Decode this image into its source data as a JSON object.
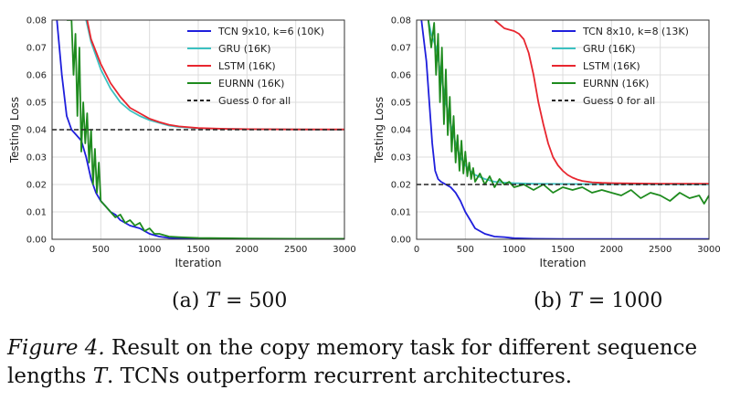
{
  "chart_data": [
    {
      "type": "line",
      "subcaption": {
        "prefix": "(a) ",
        "var": "T",
        "rest": " = 500"
      },
      "xlabel": "Iteration",
      "ylabel": "Testing Loss",
      "xlim": [
        0,
        3000
      ],
      "ylim": [
        0,
        0.08
      ],
      "xticks": [
        "0",
        "500",
        "1000",
        "1500",
        "2000",
        "2500",
        "3000"
      ],
      "yticks": [
        "0.00",
        "0.01",
        "0.02",
        "0.03",
        "0.04",
        "0.05",
        "0.06",
        "0.07",
        "0.08"
      ],
      "grid": true,
      "legend_position": "top-right",
      "series": [
        {
          "name": "TCN 9x10, k=6 (10K)",
          "color": "#1f1fdc",
          "style": "solid",
          "x": [
            50,
            100,
            150,
            200,
            250,
            300,
            350,
            400,
            450,
            500,
            550,
            600,
            650,
            700,
            800,
            900,
            1000,
            1100,
            1200,
            1500,
            2000,
            2500,
            3000
          ],
          "y": [
            0.08,
            0.06,
            0.045,
            0.04,
            0.038,
            0.036,
            0.03,
            0.022,
            0.017,
            0.014,
            0.012,
            0.01,
            0.009,
            0.007,
            0.005,
            0.004,
            0.002,
            0.001,
            0.0005,
            0.0002,
            0.0001,
            0.0001,
            0.0001
          ]
        },
        {
          "name": "GRU (16K)",
          "color": "#3cc1c1",
          "style": "solid",
          "x": [
            350,
            400,
            500,
            600,
            700,
            800,
            900,
            1000,
            1100,
            1200,
            1300,
            1500,
            1800,
            2000,
            2500,
            3000
          ],
          "y": [
            0.08,
            0.072,
            0.062,
            0.055,
            0.05,
            0.047,
            0.045,
            0.0435,
            0.0425,
            0.0415,
            0.041,
            0.0405,
            0.0403,
            0.0402,
            0.0401,
            0.04
          ]
        },
        {
          "name": "LSTM (16K)",
          "color": "#e8262f",
          "style": "solid",
          "x": [
            360,
            400,
            500,
            600,
            700,
            800,
            900,
            1000,
            1100,
            1200,
            1300,
            1500,
            1800,
            2000,
            2500,
            3000
          ],
          "y": [
            0.08,
            0.073,
            0.064,
            0.057,
            0.052,
            0.048,
            0.046,
            0.044,
            0.0428,
            0.0418,
            0.0412,
            0.0406,
            0.0403,
            0.0402,
            0.0401,
            0.0401
          ]
        },
        {
          "name": "EURNN (16K)",
          "color": "#1e8b1e",
          "style": "solid",
          "x": [
            150,
            200,
            220,
            240,
            260,
            280,
            300,
            320,
            340,
            360,
            380,
            400,
            420,
            440,
            460,
            480,
            500,
            550,
            600,
            650,
            700,
            750,
            800,
            850,
            900,
            950,
            1000,
            1050,
            1100,
            1200,
            1300,
            1500,
            2000,
            2500,
            3000
          ],
          "y": [
            0.08,
            0.08,
            0.06,
            0.075,
            0.045,
            0.07,
            0.032,
            0.05,
            0.035,
            0.046,
            0.028,
            0.04,
            0.02,
            0.033,
            0.017,
            0.028,
            0.014,
            0.012,
            0.01,
            0.008,
            0.009,
            0.006,
            0.007,
            0.005,
            0.006,
            0.003,
            0.004,
            0.002,
            0.002,
            0.001,
            0.0008,
            0.0005,
            0.0003,
            0.0002,
            0.0002
          ]
        },
        {
          "name": "Guess 0 for all",
          "color": "#222222",
          "style": "dashed",
          "x": [
            0,
            3000
          ],
          "y": [
            0.04,
            0.04
          ]
        }
      ]
    },
    {
      "type": "line",
      "subcaption": {
        "prefix": "(b) ",
        "var": "T",
        "rest": " = 1000"
      },
      "xlabel": "Iteration",
      "ylabel": "Testing Loss",
      "xlim": [
        0,
        3000
      ],
      "ylim": [
        0,
        0.08
      ],
      "xticks": [
        "0",
        "500",
        "1000",
        "1500",
        "2000",
        "2500",
        "3000"
      ],
      "yticks": [
        "0.00",
        "0.01",
        "0.02",
        "0.03",
        "0.04",
        "0.05",
        "0.06",
        "0.07",
        "0.08"
      ],
      "grid": true,
      "legend_position": "top-right",
      "series": [
        {
          "name": "TCN 8x10, k=8 (13K)",
          "color": "#1f1fdc",
          "style": "solid",
          "x": [
            50,
            100,
            130,
            160,
            190,
            220,
            250,
            300,
            350,
            400,
            450,
            500,
            550,
            600,
            650,
            700,
            800,
            900,
            1000,
            1200,
            1500,
            2000,
            3000
          ],
          "y": [
            0.08,
            0.065,
            0.05,
            0.035,
            0.025,
            0.022,
            0.021,
            0.02,
            0.019,
            0.017,
            0.014,
            0.01,
            0.007,
            0.004,
            0.003,
            0.002,
            0.001,
            0.0008,
            0.0004,
            0.0002,
            0.0001,
            0.0001,
            0.0001
          ]
        },
        {
          "name": "GRU (16K)",
          "color": "#3cc1c1",
          "style": "solid",
          "x": [
            120,
            150,
            200,
            250,
            300,
            350,
            400,
            450,
            500,
            550,
            600,
            700,
            800,
            900,
            1000,
            1200,
            1500,
            2000,
            2500,
            3000
          ],
          "y": [
            0.08,
            0.075,
            0.07,
            0.06,
            0.05,
            0.042,
            0.035,
            0.03,
            0.027,
            0.025,
            0.0235,
            0.022,
            0.021,
            0.0207,
            0.0205,
            0.0203,
            0.0202,
            0.0201,
            0.0201,
            0.02
          ]
        },
        {
          "name": "LSTM (16K)",
          "color": "#e8262f",
          "style": "solid",
          "x": [
            800,
            850,
            900,
            950,
            1000,
            1050,
            1100,
            1150,
            1200,
            1250,
            1300,
            1350,
            1400,
            1450,
            1500,
            1550,
            1600,
            1650,
            1700,
            1800,
            1900,
            2000,
            2200,
            2500,
            3000
          ],
          "y": [
            0.08,
            0.0785,
            0.077,
            0.0765,
            0.076,
            0.075,
            0.073,
            0.068,
            0.06,
            0.05,
            0.042,
            0.035,
            0.03,
            0.027,
            0.025,
            0.0235,
            0.0225,
            0.0218,
            0.0213,
            0.0208,
            0.0206,
            0.0205,
            0.0204,
            0.0203,
            0.0203
          ]
        },
        {
          "name": "EURNN (16K)",
          "color": "#1e8b1e",
          "style": "solid",
          "x": [
            120,
            150,
            180,
            200,
            220,
            240,
            260,
            280,
            300,
            320,
            340,
            360,
            380,
            400,
            420,
            440,
            460,
            480,
            500,
            520,
            540,
            560,
            580,
            600,
            650,
            700,
            750,
            800,
            850,
            900,
            950,
            1000,
            1100,
            1200,
            1300,
            1400,
            1500,
            1600,
            1700,
            1800,
            1900,
            2000,
            2100,
            2200,
            2300,
            2400,
            2500,
            2600,
            2700,
            2800,
            2900,
            2950,
            3000
          ],
          "y": [
            0.08,
            0.07,
            0.079,
            0.06,
            0.075,
            0.05,
            0.07,
            0.042,
            0.062,
            0.038,
            0.052,
            0.032,
            0.045,
            0.028,
            0.038,
            0.025,
            0.036,
            0.024,
            0.032,
            0.023,
            0.028,
            0.022,
            0.026,
            0.021,
            0.024,
            0.02,
            0.023,
            0.019,
            0.022,
            0.02,
            0.021,
            0.019,
            0.02,
            0.018,
            0.02,
            0.017,
            0.019,
            0.018,
            0.019,
            0.017,
            0.018,
            0.017,
            0.016,
            0.018,
            0.015,
            0.017,
            0.016,
            0.014,
            0.017,
            0.015,
            0.016,
            0.013,
            0.016
          ]
        },
        {
          "name": "Guess 0 for all",
          "color": "#222222",
          "style": "dashed",
          "x": [
            0,
            3000
          ],
          "y": [
            0.02,
            0.02
          ]
        }
      ]
    }
  ],
  "caption": {
    "label": "Figure 4.",
    "part1": " Result on the copy memory task for different sequence lengths ",
    "var": "T",
    "part2": ". TCNs outperform recurrent architectures."
  }
}
